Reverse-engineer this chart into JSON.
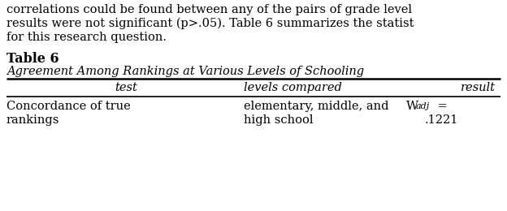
{
  "background_color": "#ffffff",
  "header_text": "Table 6",
  "subtitle_text": "Agreement Among Rankings at Various Levels of Schooling",
  "col_headers": [
    "test",
    "levels compared",
    "result"
  ],
  "body_lines": [
    "correlations could be found between any of the pairs of grade level",
    "results were not significant (p>.05). Table 6 summarizes the statist",
    "for this research question."
  ],
  "row_col1_line1": "Concordance of true",
  "row_col1_line2": "rankings",
  "row_col2_line1": "elementary, middle, and",
  "row_col2_line2": "high school",
  "row_col3_W": "W",
  "row_col3_sub": "adj",
  "row_col3_eq": " =",
  "row_col3_val": ".1221",
  "font_family": "DejaVu Serif",
  "font_size": 10.5,
  "header_font_size": 11.5,
  "text_color": "#000000",
  "line_color": "#000000"
}
